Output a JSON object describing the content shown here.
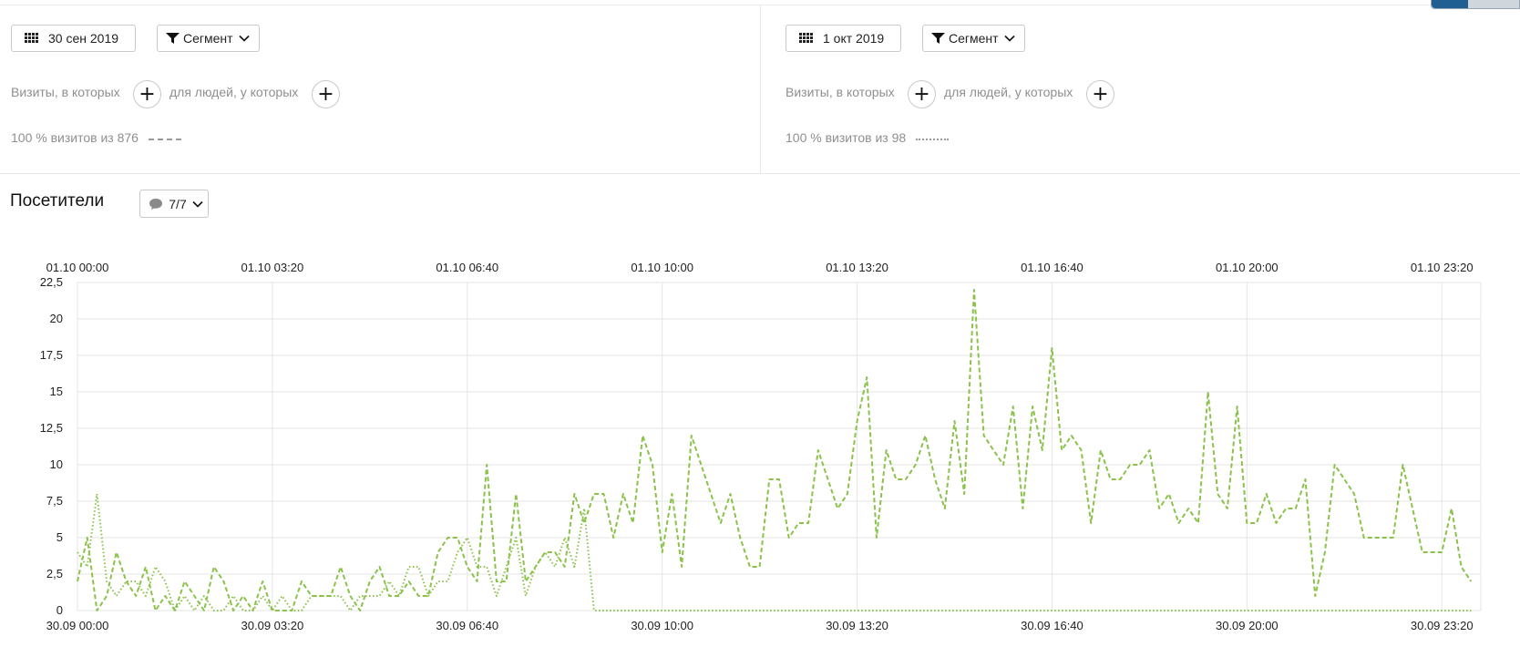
{
  "left_segment": {
    "date_label": "30 сен 2019",
    "segment_label": "Сегмент",
    "visits_label": "Визиты, в которых",
    "people_label": "для людей, у которых",
    "stat_text": "100 % визитов из 876",
    "legend_style": "dashed"
  },
  "right_segment": {
    "date_label": "1 окт 2019",
    "segment_label": "Сегмент",
    "visits_label": "Визиты, в которых",
    "people_label": "для людей, у которых",
    "stat_text": "100 % визитов из 98",
    "legend_style": "dotted"
  },
  "plus_symbol": "+",
  "section": {
    "title": "Посетители",
    "counter_label": "7/7"
  },
  "icons": [
    "calendar-grid-icon",
    "funnel-icon",
    "chevron-down-icon",
    "plus-icon",
    "comment-bubble-icon"
  ],
  "colors": {
    "series": "#8ac24a",
    "grid": "#e6e6e6",
    "legend_line": "#9a9a9a"
  },
  "chart_data": {
    "type": "line",
    "title": "",
    "xlabel": "",
    "ylabel": "",
    "ylim": [
      0,
      22.5
    ],
    "yticks": [
      "0",
      "2,5",
      "5",
      "7,5",
      "10",
      "12,5",
      "15",
      "17,5",
      "20",
      "22,5"
    ],
    "x_top_ticks": [
      "01.10 00:00",
      "01.10 03:20",
      "01.10 06:40",
      "01.10 10:00",
      "01.10 13:20",
      "01.10 16:40",
      "01.10 20:00",
      "01.10 23:20"
    ],
    "x_bottom_ticks": [
      "30.09 00:00",
      "30.09 03:20",
      "30.09 06:40",
      "30.09 10:00",
      "30.09 13:20",
      "30.09 16:40",
      "30.09 20:00",
      "30.09 23:20"
    ],
    "x_minutes_per_point": 10,
    "grid": true,
    "series": [
      {
        "date": "30 сен 2019",
        "style": "dashed",
        "values": [
          2,
          5,
          0,
          1,
          4,
          2,
          1,
          3,
          0,
          1,
          0,
          2,
          1,
          0,
          3,
          2,
          0,
          1,
          0,
          2,
          0,
          0,
          0,
          2,
          1,
          1,
          1,
          3,
          1,
          0,
          2,
          3,
          1,
          1,
          2,
          1,
          1,
          4,
          5,
          5,
          3,
          2,
          10,
          2,
          2,
          8,
          2,
          3,
          4,
          4,
          3,
          8,
          6,
          8,
          8,
          5,
          8,
          6,
          12,
          10,
          4,
          8,
          3,
          12,
          10,
          8,
          6,
          8,
          5,
          3,
          3,
          9,
          9,
          5,
          6,
          6,
          11,
          9,
          7,
          8,
          13,
          16,
          5,
          11,
          9,
          9,
          10,
          12,
          9,
          7,
          13,
          8,
          22,
          12,
          11,
          10,
          14,
          7,
          14,
          11,
          18,
          11,
          12,
          11,
          6,
          11,
          9,
          9,
          10,
          10,
          11,
          7,
          8,
          6,
          7,
          6,
          15,
          8,
          7,
          14,
          6,
          6,
          8,
          6,
          7,
          7,
          9,
          1,
          4,
          10,
          9,
          8,
          5,
          5,
          5,
          5,
          10,
          7,
          4,
          4,
          4,
          7,
          3,
          2
        ]
      },
      {
        "date": "1 окт 2019",
        "style": "dotted",
        "values": [
          4,
          3,
          8,
          2,
          1,
          2,
          2,
          1,
          3,
          2,
          0,
          1,
          0,
          1,
          0,
          0,
          1,
          0,
          0,
          1,
          0,
          1,
          0,
          0,
          1,
          1,
          1,
          1,
          0,
          1,
          1,
          1,
          2,
          1,
          3,
          3,
          1,
          2,
          2,
          4,
          5,
          3,
          3,
          1,
          3,
          5,
          1,
          3,
          4,
          3,
          5,
          3,
          7,
          0,
          0,
          0,
          0,
          0,
          0,
          0,
          0,
          0,
          0,
          0,
          0,
          0,
          0,
          0,
          0,
          0,
          0,
          0,
          0,
          0,
          0,
          0,
          0,
          0,
          0,
          0,
          0,
          0,
          0,
          0,
          0,
          0,
          0,
          0,
          0,
          0,
          0,
          0,
          0,
          0,
          0,
          0,
          0,
          0,
          0,
          0,
          0,
          0,
          0,
          0,
          0,
          0,
          0,
          0,
          0,
          0,
          0,
          0,
          0,
          0,
          0,
          0,
          0,
          0,
          0,
          0,
          0,
          0,
          0,
          0,
          0,
          0,
          0,
          0,
          0,
          0,
          0,
          0,
          0,
          0,
          0,
          0,
          0,
          0,
          0,
          0,
          0,
          0,
          0,
          0
        ]
      }
    ]
  }
}
